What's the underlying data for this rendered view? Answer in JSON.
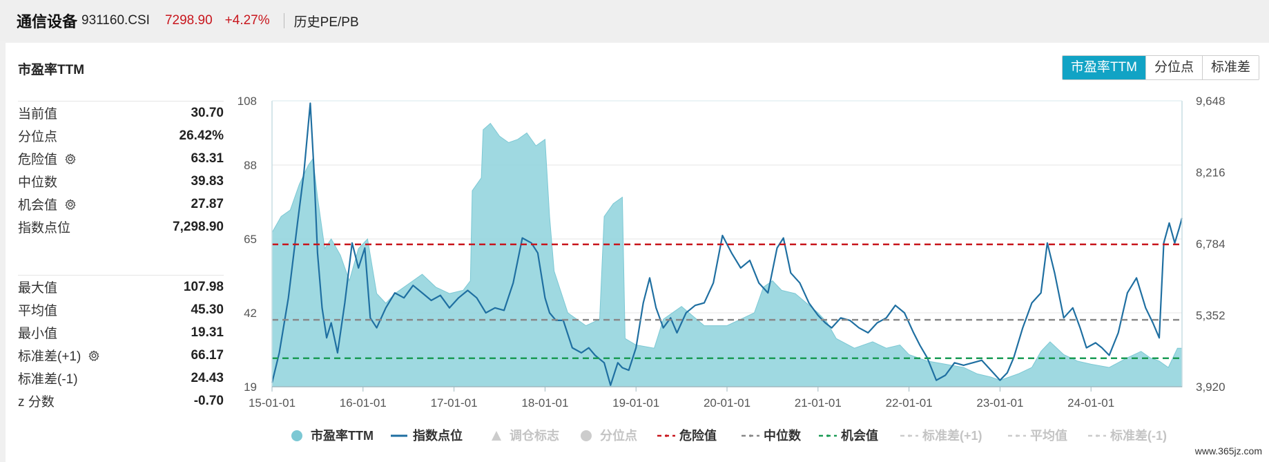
{
  "header": {
    "name": "通信设备",
    "code": "931160.CSI",
    "price": "7298.90",
    "change": "+4.27%",
    "history": "历史PE/PB"
  },
  "panel": {
    "title": "市盈率TTM",
    "tabs": [
      "市盈率TTM",
      "分位点",
      "标准差"
    ],
    "active_tab": 0
  },
  "stats_top": [
    {
      "label": "当前值",
      "value": "30.70",
      "gear": false
    },
    {
      "label": "分位点",
      "value": "26.42%",
      "gear": false
    },
    {
      "label": "危险值",
      "value": "63.31",
      "gear": true
    },
    {
      "label": "中位数",
      "value": "39.83",
      "gear": false
    },
    {
      "label": "机会值",
      "value": "27.87",
      "gear": true
    },
    {
      "label": "指数点位",
      "value": "7,298.90",
      "gear": false
    }
  ],
  "stats_bottom": [
    {
      "label": "最大值",
      "value": "107.98",
      "gear": false
    },
    {
      "label": "平均值",
      "value": "45.30",
      "gear": false
    },
    {
      "label": "最小值",
      "value": "19.31",
      "gear": false
    },
    {
      "label": "标准差(+1)",
      "value": "66.17",
      "gear": true
    },
    {
      "label": "标准差(-1)",
      "value": "24.43",
      "gear": false
    },
    {
      "label": "z 分数",
      "value": "-0.70",
      "gear": false
    }
  ],
  "watermark": "www.365jz.com",
  "colors": {
    "pe_fill": "#8ed2dc",
    "pe_stroke": "#7cc8d4",
    "index_line": "#1f6fa1",
    "danger": "#c8161d",
    "median": "#888888",
    "opportunity": "#1a9b55",
    "accent": "#11a3c5",
    "price_red": "#c8161d"
  },
  "chart_data": {
    "type": "area",
    "x_ticks": [
      "15-01-01",
      "16-01-01",
      "17-01-01",
      "18-01-01",
      "19-01-01",
      "20-01-01",
      "21-01-01",
      "22-01-01",
      "23-01-01",
      "24-01-01"
    ],
    "x_tick_years": [
      2015,
      2016,
      2017,
      2018,
      2019,
      2020,
      2021,
      2022,
      2023,
      2024
    ],
    "x_range": [
      2015.0,
      2025.0
    ],
    "y_left_ticks": [
      "108",
      "88",
      "65",
      "42",
      "19"
    ],
    "y_left_tick_values": [
      108,
      88,
      65,
      42,
      19
    ],
    "y_left_range": [
      19,
      108
    ],
    "y_right_ticks": [
      "9,648",
      "8,216",
      "6,784",
      "5,352",
      "3,920"
    ],
    "y_right_tick_values": [
      9648,
      8216,
      6784,
      5352,
      3920
    ],
    "y_right_range": [
      3920,
      9648
    ],
    "reference_lines": [
      {
        "name": "危险值",
        "value": 63.31,
        "style": "dashed"
      },
      {
        "name": "中位数",
        "value": 39.83,
        "style": "dashed"
      },
      {
        "name": "机会值",
        "value": 27.87,
        "style": "dashed"
      }
    ],
    "series": [
      {
        "name": "市盈率TTM",
        "axis": "left",
        "x": [
          2015.0,
          2015.1,
          2015.2,
          2015.3,
          2015.4,
          2015.45,
          2015.5,
          2015.58,
          2015.65,
          2015.75,
          2015.85,
          2015.95,
          2016.05,
          2016.15,
          2016.25,
          2016.35,
          2016.5,
          2016.65,
          2016.8,
          2016.95,
          2017.1,
          2017.18,
          2017.2,
          2017.3,
          2017.32,
          2017.4,
          2017.5,
          2017.6,
          2017.7,
          2017.8,
          2017.9,
          2018.0,
          2018.05,
          2018.1,
          2018.25,
          2018.45,
          2018.6,
          2018.65,
          2018.75,
          2018.85,
          2018.88,
          2019.0,
          2019.2,
          2019.3,
          2019.5,
          2019.75,
          2020.0,
          2020.15,
          2020.3,
          2020.4,
          2020.5,
          2020.6,
          2020.75,
          2021.0,
          2021.1,
          2021.2,
          2021.4,
          2021.6,
          2021.75,
          2021.9,
          2022.0,
          2022.2,
          2022.4,
          2022.6,
          2022.75,
          2022.9,
          2023.0,
          2023.2,
          2023.35,
          2023.45,
          2023.55,
          2023.7,
          2023.85,
          2024.0,
          2024.2,
          2024.4,
          2024.55,
          2024.65,
          2024.75,
          2024.85,
          2024.95,
          2025.0
        ],
        "values": [
          67,
          72,
          74,
          82,
          88,
          90,
          78,
          62,
          65,
          60,
          52,
          62,
          65,
          48,
          45,
          48,
          51,
          54,
          50,
          48,
          49,
          52,
          80,
          84,
          99,
          101,
          97,
          95,
          96,
          98,
          94,
          96,
          72,
          55,
          42,
          38,
          40,
          72,
          76,
          78,
          34,
          32,
          31,
          40,
          44,
          38,
          38,
          40,
          42,
          50,
          52,
          49,
          48,
          42,
          39,
          34,
          31,
          33,
          31,
          32,
          29,
          27,
          26,
          25,
          23,
          22,
          21,
          23,
          25,
          30,
          33,
          29,
          27,
          26,
          25,
          28,
          30,
          28,
          27,
          25,
          31,
          31
        ]
      },
      {
        "name": "指数点位",
        "axis": "right",
        "x": [
          2015.0,
          2015.08,
          2015.18,
          2015.28,
          2015.35,
          2015.42,
          2015.46,
          2015.5,
          2015.55,
          2015.6,
          2015.65,
          2015.72,
          2015.8,
          2015.88,
          2015.95,
          2016.02,
          2016.08,
          2016.15,
          2016.25,
          2016.35,
          2016.45,
          2016.55,
          2016.65,
          2016.75,
          2016.85,
          2016.95,
          2017.05,
          2017.15,
          2017.25,
          2017.35,
          2017.45,
          2017.55,
          2017.65,
          2017.75,
          2017.85,
          2017.92,
          2018.0,
          2018.05,
          2018.12,
          2018.2,
          2018.3,
          2018.4,
          2018.48,
          2018.55,
          2018.65,
          2018.72,
          2018.8,
          2018.85,
          2018.92,
          2019.0,
          2019.08,
          2019.15,
          2019.22,
          2019.3,
          2019.38,
          2019.45,
          2019.55,
          2019.65,
          2019.75,
          2019.85,
          2019.95,
          2020.05,
          2020.15,
          2020.25,
          2020.35,
          2020.45,
          2020.55,
          2020.62,
          2020.7,
          2020.8,
          2020.9,
          2021.0,
          2021.08,
          2021.15,
          2021.25,
          2021.35,
          2021.45,
          2021.55,
          2021.65,
          2021.75,
          2021.85,
          2021.95,
          2022.05,
          2022.12,
          2022.2,
          2022.3,
          2022.4,
          2022.5,
          2022.6,
          2022.7,
          2022.8,
          2022.9,
          2023.0,
          2023.08,
          2023.15,
          2023.25,
          2023.35,
          2023.45,
          2023.52,
          2023.6,
          2023.7,
          2023.8,
          2023.88,
          2023.95,
          2024.05,
          2024.12,
          2024.2,
          2024.3,
          2024.4,
          2024.5,
          2024.6,
          2024.68,
          2024.75,
          2024.8,
          2024.86,
          2024.92,
          2024.97,
          2025.0
        ],
        "values": [
          4000,
          4600,
          5700,
          7200,
          8200,
          9600,
          8300,
          6600,
          5500,
          4900,
          5200,
          4600,
          5600,
          6800,
          6300,
          6700,
          5300,
          5100,
          5500,
          5800,
          5700,
          5950,
          5800,
          5650,
          5750,
          5500,
          5700,
          5850,
          5700,
          5400,
          5500,
          5450,
          6000,
          6900,
          6800,
          6600,
          5700,
          5400,
          5250,
          5250,
          4700,
          4600,
          4700,
          4550,
          4400,
          3950,
          4400,
          4300,
          4250,
          4700,
          5600,
          6100,
          5500,
          5100,
          5300,
          5000,
          5400,
          5550,
          5600,
          6000,
          6950,
          6600,
          6300,
          6450,
          6000,
          5800,
          6700,
          6900,
          6200,
          6000,
          5600,
          5350,
          5200,
          5100,
          5300,
          5250,
          5100,
          5000,
          5200,
          5300,
          5550,
          5400,
          5000,
          4750,
          4500,
          4050,
          4150,
          4400,
          4350,
          4400,
          4450,
          4250,
          4050,
          4200,
          4500,
          5100,
          5600,
          5800,
          6800,
          6200,
          5300,
          5500,
          5100,
          4700,
          4800,
          4700,
          4550,
          5000,
          5800,
          6100,
          5500,
          5200,
          4900,
          6800,
          7200,
          6800,
          7100,
          7300
        ]
      }
    ],
    "legend": [
      {
        "label": "市盈率TTM",
        "marker": "circle",
        "color": "#7cc8d4",
        "enabled": true
      },
      {
        "label": "指数点位",
        "marker": "line",
        "color": "#1f6fa1",
        "enabled": true
      },
      {
        "label": "调仓标志",
        "marker": "triangle",
        "color": "#cccccc",
        "enabled": false
      },
      {
        "label": "分位点",
        "marker": "circle",
        "color": "#cccccc",
        "enabled": false
      },
      {
        "label": "危险值",
        "marker": "dash",
        "color": "#c8161d",
        "enabled": true
      },
      {
        "label": "中位数",
        "marker": "dash",
        "color": "#888888",
        "enabled": true
      },
      {
        "label": "机会值",
        "marker": "dash",
        "color": "#1a9b55",
        "enabled": true
      },
      {
        "label": "标准差(+1)",
        "marker": "dash",
        "color": "#cccccc",
        "enabled": false
      },
      {
        "label": "平均值",
        "marker": "dash",
        "color": "#cccccc",
        "enabled": false
      },
      {
        "label": "标准差(-1)",
        "marker": "dash",
        "color": "#cccccc",
        "enabled": false
      }
    ],
    "grid": true,
    "legend_position": "bottom"
  }
}
